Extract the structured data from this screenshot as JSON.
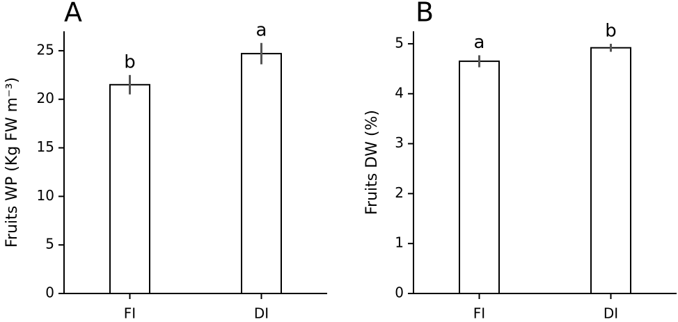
{
  "chart_data": [
    {
      "type": "bar",
      "panel": "A",
      "ylabel": "Fruits WP (Kg FW m⁻³)",
      "categories": [
        "FI",
        "DI"
      ],
      "values": [
        21.5,
        24.7
      ],
      "errors": [
        1.0,
        1.1
      ],
      "annotations": [
        "b",
        "a"
      ],
      "color": "#ffffff",
      "edgecolor": "#000000",
      "error_color": "#555555",
      "ylim": [
        0,
        27
      ],
      "yticks": [
        0,
        5,
        10,
        15,
        20,
        25
      ]
    },
    {
      "type": "bar",
      "panel": "B",
      "ylabel": "Fruits DW (%)",
      "categories": [
        "FI",
        "DI"
      ],
      "values": [
        4.65,
        4.92
      ],
      "errors": [
        0.12,
        0.08
      ],
      "annotations": [
        "a",
        "b"
      ],
      "color": "#ffffff",
      "edgecolor": "#000000",
      "error_color": "#555555",
      "ylim": [
        0,
        5.25
      ],
      "yticks": [
        0,
        1,
        2,
        3,
        4,
        5
      ]
    }
  ]
}
